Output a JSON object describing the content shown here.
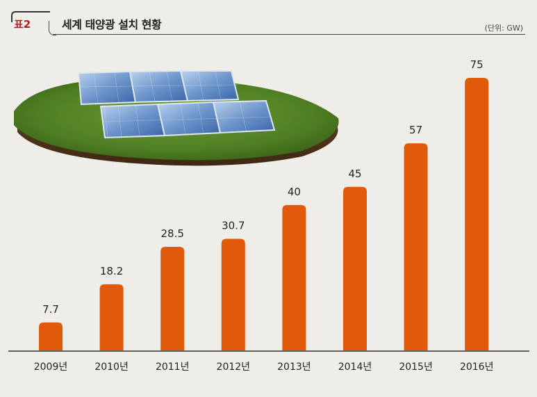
{
  "header": {
    "tag": "표2",
    "title": "세계 태양광 설치 현황",
    "unit": "(단위: GW)"
  },
  "colors": {
    "bar": "#e15a0c",
    "background": "#efede8"
  },
  "chart_data": {
    "type": "bar",
    "title": "세계 태양광 설치 현황",
    "categories": [
      "2009년",
      "2010년",
      "2011년",
      "2012년",
      "2013년",
      "2014년",
      "2015년",
      "2016년"
    ],
    "values": [
      7.7,
      18.2,
      28.5,
      30.7,
      40,
      45,
      57,
      75
    ],
    "value_labels": [
      "7.7",
      "18.2",
      "28.5",
      "30.7",
      "40",
      "45",
      "57",
      "75"
    ],
    "ylabel": "",
    "xlabel": "",
    "ylim": [
      0,
      75
    ],
    "grid": false,
    "legend": "none"
  }
}
